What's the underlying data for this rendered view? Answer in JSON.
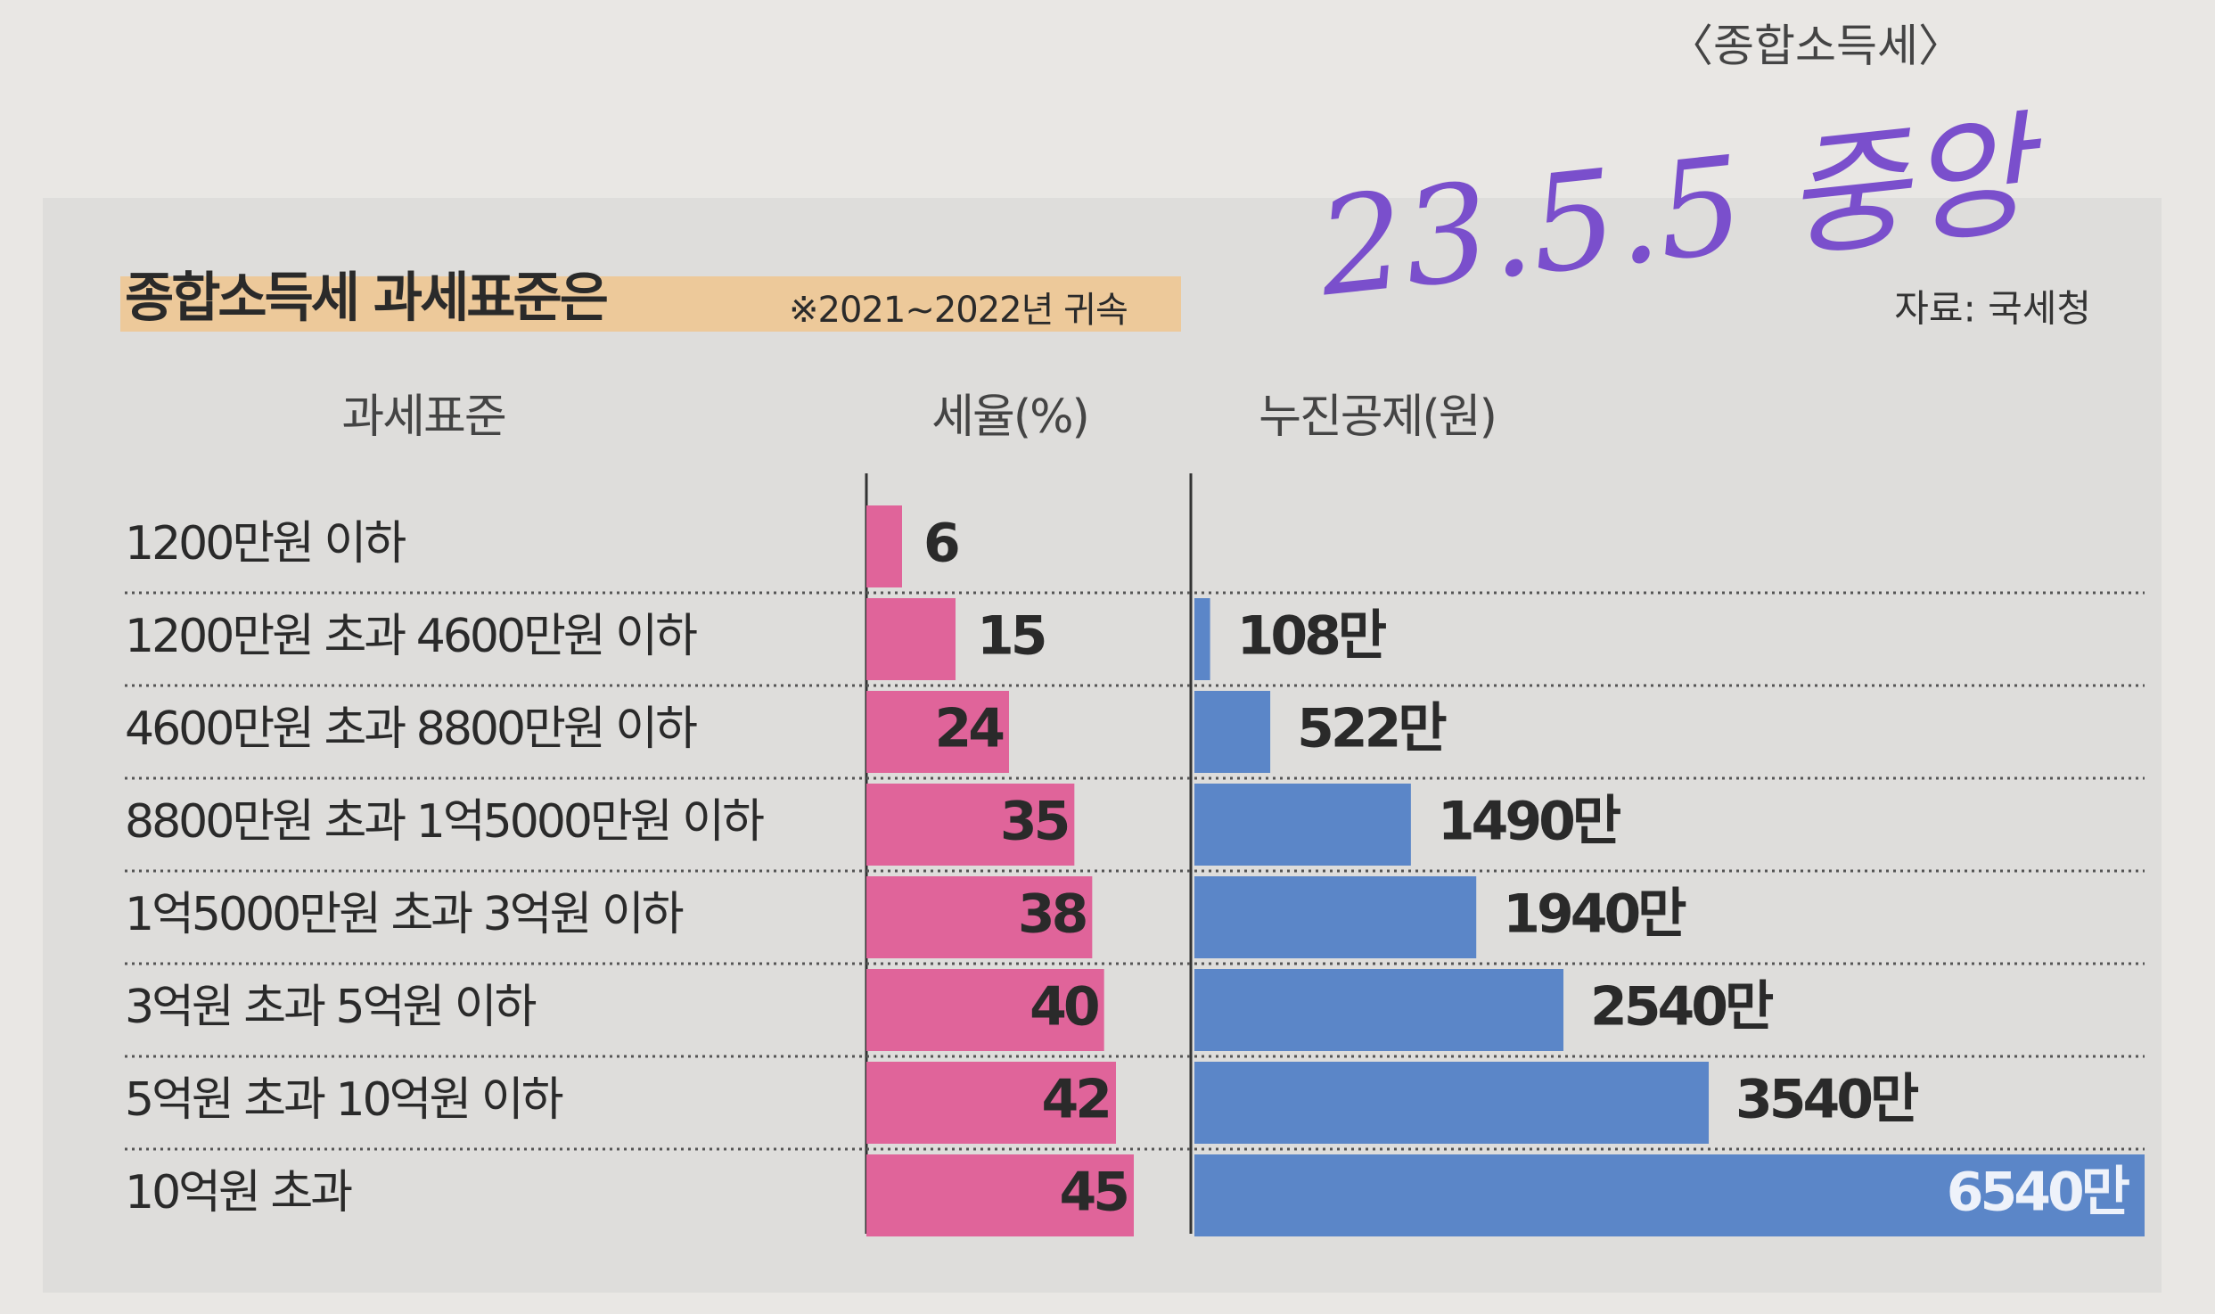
{
  "section": "〈종합소득세〉",
  "annotation": "23.5.5 중앙",
  "source": "자료: 국세청",
  "chart_data": [
    {
      "type": "bar",
      "orientation": "horizontal",
      "title": "종합소득세 과세표준은",
      "subtitle": "※2021~2022년 귀속",
      "category_label": "과세표준",
      "value_label": "세율(%)",
      "categories": [
        "1200만원 이하",
        "1200만원 초과 4600만원 이하",
        "4600만원 초과 8800만원 이하",
        "8800만원 초과 1억5000만원 이하",
        "1억5000만원 초과 3억원 이하",
        "3억원 초과 5억원 이하",
        "5억원 초과 10억원 이하",
        "10억원 초과"
      ],
      "values": [
        6,
        15,
        24,
        35,
        38,
        40,
        42,
        45
      ],
      "color": "#e0649a"
    },
    {
      "type": "bar",
      "orientation": "horizontal",
      "value_label": "누진공제(원)",
      "values": [
        null,
        1080000,
        5220000,
        14900000,
        19400000,
        25400000,
        35400000,
        65400000
      ],
      "value_labels": [
        null,
        "108만",
        "522만",
        "1490만",
        "1940만",
        "2540만",
        "3540만",
        "6540만"
      ],
      "color": "#5b86c8"
    }
  ]
}
